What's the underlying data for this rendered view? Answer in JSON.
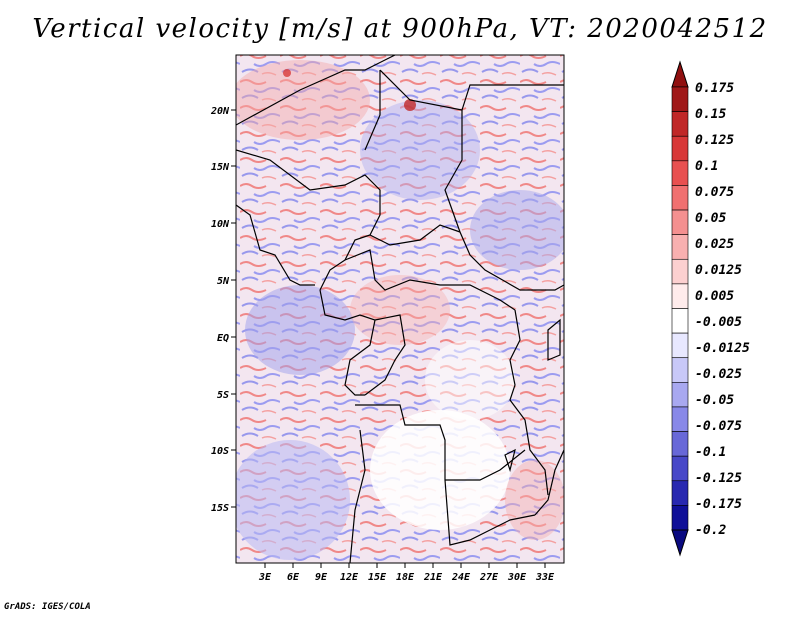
{
  "title": "Vertical velocity [m/s] at 900hPa, VT: 2020042512",
  "footer": "GrADS: IGES/COLA",
  "map": {
    "lat_range": [
      -19,
      25
    ],
    "lon_range": [
      0,
      35
    ],
    "lat_labels": [
      "20N",
      "15N",
      "10N",
      "5N",
      "EQ",
      "5S",
      "10S",
      "15S"
    ],
    "lon_labels": [
      "3E",
      "6E",
      "9E",
      "12E",
      "15E",
      "18E",
      "21E",
      "24E",
      "27E",
      "30E",
      "33E"
    ]
  },
  "colorbar": {
    "labels": [
      "0.175",
      "0.15",
      "0.125",
      "0.1",
      "0.075",
      "0.05",
      "0.025",
      "0.0125",
      "0.005",
      "-0.005",
      "-0.0125",
      "-0.025",
      "-0.05",
      "-0.075",
      "-0.1",
      "-0.125",
      "-0.175",
      "-0.2"
    ],
    "colors": [
      "#a01818",
      "#c02828",
      "#d83838",
      "#e85050",
      "#f07070",
      "#f49090",
      "#f8b0b0",
      "#fcd0d0",
      "#ffecec",
      "#ffffff",
      "#e8e8ff",
      "#c8c8f8",
      "#a8a8f0",
      "#8888e8",
      "#6868d8",
      "#4848c8",
      "#2828b0",
      "#101098"
    ],
    "top_cap_color": "#901010",
    "bottom_cap_color": "#0a0a80"
  }
}
